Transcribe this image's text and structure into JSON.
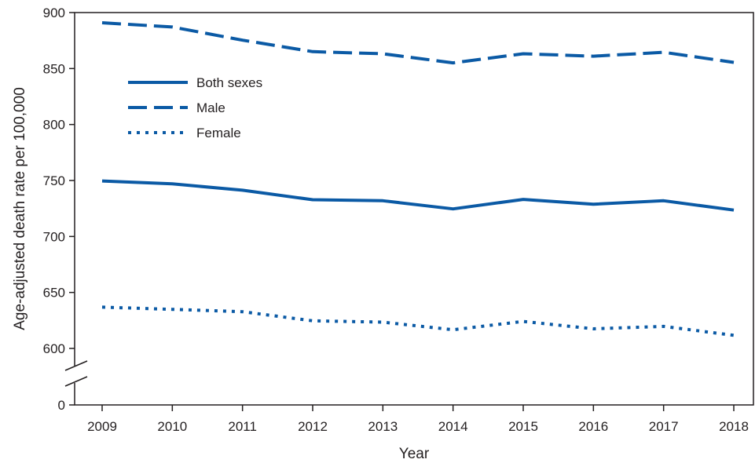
{
  "chart_data": {
    "type": "line",
    "xlabel": "Year",
    "ylabel": "Age-adjusted death rate per 100,000",
    "categories": [
      "2009",
      "2010",
      "2011",
      "2012",
      "2013",
      "2014",
      "2015",
      "2016",
      "2017",
      "2018"
    ],
    "y_ticks": [
      "0",
      "600",
      "650",
      "700",
      "750",
      "800",
      "850",
      "900"
    ],
    "ylim": [
      600,
      900
    ],
    "y_axis_break": true,
    "grid": false,
    "legend_position": "top-left",
    "series": [
      {
        "name": "Both sexes",
        "style": "solid",
        "values": [
          749.6,
          747.0,
          741.3,
          732.8,
          731.9,
          724.6,
          733.1,
          728.8,
          731.9,
          723.6
        ]
      },
      {
        "name": "Male",
        "style": "dashed",
        "values": [
          890.9,
          887.1,
          875.3,
          865.1,
          863.2,
          855.1,
          863.2,
          861.0,
          864.5,
          855.5
        ]
      },
      {
        "name": "Female",
        "style": "dotted",
        "values": [
          636.9,
          634.9,
          632.8,
          624.7,
          623.5,
          616.7,
          624.1,
          617.5,
          619.7,
          611.7
        ]
      }
    ],
    "color": "#0b5aa5"
  }
}
